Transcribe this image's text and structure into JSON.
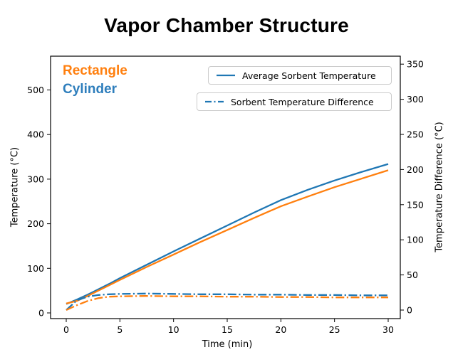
{
  "title": "Vapor Chamber Structure",
  "annotations": {
    "rectangle": {
      "label": "Rectangle",
      "color": "#ff7f0e"
    },
    "cylinder": {
      "label": "Cylinder",
      "color": "#2e7ebc"
    }
  },
  "legend": [
    {
      "label": "Average Sorbent Temperature",
      "style": "solid",
      "color": "#1f77b4"
    },
    {
      "label": "Sorbent Temperature Difference",
      "style": "dashdot",
      "color": "#1f77b4"
    }
  ],
  "colors": {
    "line_blue": "#1f77b4",
    "line_orange": "#ff7f0e",
    "axis": "#000000",
    "legend_border": "#cbcbcb"
  },
  "chart_data": {
    "type": "line",
    "title": "Vapor Chamber Structure",
    "xlabel": "Time (min)",
    "ylabel_left": "Temperature (°C)",
    "ylabel_right": "Temperature Difference (°C)",
    "grid": false,
    "x_axis": {
      "label": "Time (min)",
      "ticks": [
        0,
        5,
        10,
        15,
        20,
        25,
        30
      ],
      "range": [
        0,
        30
      ]
    },
    "left_axis": {
      "label": "Temperature (°C)",
      "ticks": [
        0,
        100,
        200,
        300,
        400,
        500
      ],
      "range": [
        -15,
        575
      ]
    },
    "right_axis": {
      "label": "Temperature Difference (°C)",
      "ticks": [
        0,
        50,
        100,
        150,
        200,
        250,
        300,
        350
      ],
      "range": [
        -12,
        373
      ]
    },
    "x": [
      0,
      1,
      2,
      3,
      4,
      5,
      7.5,
      10,
      12.5,
      15,
      17.5,
      20,
      22.5,
      25,
      27.5,
      30
    ],
    "series": [
      {
        "id": "cylinder-average-temperature",
        "name": "Cylinder — Average Sorbent Temperature",
        "axis": "left",
        "style": "solid",
        "color": "#1f77b4",
        "values": [
          20,
          30,
          41,
          53,
          65,
          78,
          108,
          138,
          167,
          196,
          225,
          253,
          276,
          297,
          316,
          334
        ]
      },
      {
        "id": "rectangle-average-temperature",
        "name": "Rectangle — Average Sorbent Temperature",
        "axis": "left",
        "style": "solid",
        "color": "#ff7f0e",
        "values": [
          21,
          27,
          38,
          50,
          62,
          74,
          103,
          131,
          159,
          186,
          213,
          239,
          261,
          282,
          301,
          320
        ]
      },
      {
        "id": "cylinder-temperature-difference",
        "name": "Cylinder — Sorbent Temperature Difference",
        "axis": "right",
        "style": "dashdot",
        "color": "#1f77b4",
        "values": [
          0,
          14,
          19,
          21.5,
          22.5,
          23,
          23.5,
          23,
          22.5,
          22.5,
          22,
          22,
          21.5,
          21.5,
          21,
          21
        ]
      },
      {
        "id": "rectangle-temperature-difference",
        "name": "Rectangle — Sorbent Temperature Difference",
        "axis": "right",
        "style": "dashdot",
        "color": "#ff7f0e",
        "values": [
          0,
          7,
          13,
          17,
          19,
          19.5,
          20,
          19.5,
          19.5,
          19,
          19,
          18.5,
          18.5,
          18,
          18,
          18
        ]
      }
    ]
  }
}
